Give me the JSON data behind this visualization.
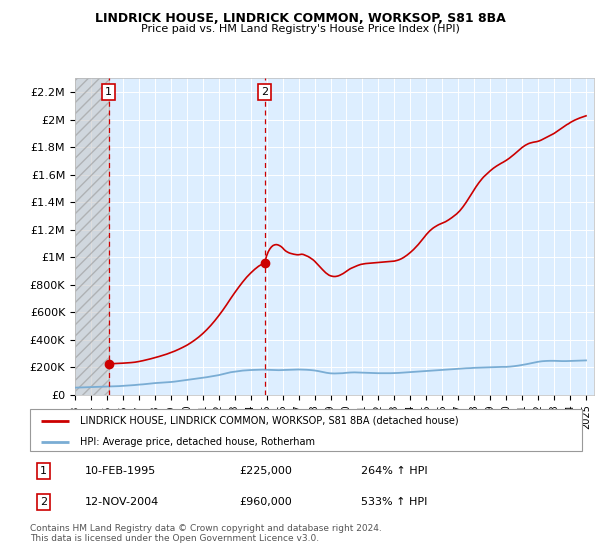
{
  "title": "LINDRICK HOUSE, LINDRICK COMMON, WORKSOP, S81 8BA",
  "subtitle": "Price paid vs. HM Land Registry's House Price Index (HPI)",
  "ylabel_ticks": [
    0,
    200000,
    400000,
    600000,
    800000,
    1000000,
    1200000,
    1400000,
    1600000,
    1800000,
    2000000,
    2200000
  ],
  "ylabel_labels": [
    "£0",
    "£200K",
    "£400K",
    "£600K",
    "£800K",
    "£1M",
    "£1.2M",
    "£1.4M",
    "£1.6M",
    "£1.8M",
    "£2M",
    "£2.2M"
  ],
  "ylim": [
    0,
    2300000
  ],
  "xlim_start": 1993.0,
  "xlim_end": 2025.5,
  "sale1_x": 1995.11,
  "sale1_y": 225000,
  "sale1_label": "1",
  "sale1_date": "10-FEB-1995",
  "sale1_price": "£225,000",
  "sale1_hpi": "264% ↑ HPI",
  "sale2_x": 2004.87,
  "sale2_y": 960000,
  "sale2_label": "2",
  "sale2_date": "12-NOV-2004",
  "sale2_price": "£960,000",
  "sale2_hpi": "533% ↑ HPI",
  "red_line_color": "#cc0000",
  "blue_line_color": "#7aadd4",
  "bg_color": "#ddeeff",
  "legend_line1": "LINDRICK HOUSE, LINDRICK COMMON, WORKSOP, S81 8BA (detached house)",
  "legend_line2": "HPI: Average price, detached house, Rotherham",
  "footer": "Contains HM Land Registry data © Crown copyright and database right 2024.\nThis data is licensed under the Open Government Licence v3.0.",
  "hpi_years": [
    1993.0,
    1993.25,
    1993.5,
    1993.75,
    1994.0,
    1994.25,
    1994.5,
    1994.75,
    1995.0,
    1995.25,
    1995.5,
    1995.75,
    1996.0,
    1996.25,
    1996.5,
    1996.75,
    1997.0,
    1997.25,
    1997.5,
    1997.75,
    1998.0,
    1998.25,
    1998.5,
    1998.75,
    1999.0,
    1999.25,
    1999.5,
    1999.75,
    2000.0,
    2000.25,
    2000.5,
    2000.75,
    2001.0,
    2001.25,
    2001.5,
    2001.75,
    2002.0,
    2002.25,
    2002.5,
    2002.75,
    2003.0,
    2003.25,
    2003.5,
    2003.75,
    2004.0,
    2004.25,
    2004.5,
    2004.75,
    2005.0,
    2005.25,
    2005.5,
    2005.75,
    2006.0,
    2006.25,
    2006.5,
    2006.75,
    2007.0,
    2007.25,
    2007.5,
    2007.75,
    2008.0,
    2008.25,
    2008.5,
    2008.75,
    2009.0,
    2009.25,
    2009.5,
    2009.75,
    2010.0,
    2010.25,
    2010.5,
    2010.75,
    2011.0,
    2011.25,
    2011.5,
    2011.75,
    2012.0,
    2012.25,
    2012.5,
    2012.75,
    2013.0,
    2013.25,
    2013.5,
    2013.75,
    2014.0,
    2014.25,
    2014.5,
    2014.75,
    2015.0,
    2015.25,
    2015.5,
    2015.75,
    2016.0,
    2016.25,
    2016.5,
    2016.75,
    2017.0,
    2017.25,
    2017.5,
    2017.75,
    2018.0,
    2018.25,
    2018.5,
    2018.75,
    2019.0,
    2019.25,
    2019.5,
    2019.75,
    2020.0,
    2020.25,
    2020.5,
    2020.75,
    2021.0,
    2021.25,
    2021.5,
    2021.75,
    2022.0,
    2022.25,
    2022.5,
    2022.75,
    2023.0,
    2023.25,
    2023.5,
    2023.75,
    2024.0,
    2024.25,
    2024.5,
    2024.75,
    2025.0
  ],
  "hpi_values": [
    52000,
    53000,
    54000,
    55000,
    56000,
    57000,
    58000,
    59000,
    60000,
    61000,
    62000,
    63000,
    65000,
    67000,
    69000,
    71000,
    74000,
    76000,
    79000,
    82000,
    85000,
    87000,
    89000,
    91000,
    93000,
    96000,
    100000,
    104000,
    108000,
    112000,
    116000,
    120000,
    124000,
    128000,
    133000,
    138000,
    143000,
    150000,
    157000,
    164000,
    168000,
    172000,
    176000,
    178000,
    180000,
    181000,
    182000,
    183000,
    182000,
    181000,
    180000,
    179000,
    180000,
    181000,
    182000,
    183000,
    184000,
    183000,
    182000,
    180000,
    177000,
    172000,
    166000,
    160000,
    156000,
    155000,
    156000,
    157000,
    160000,
    162000,
    163000,
    162000,
    161000,
    160000,
    159000,
    158000,
    157000,
    157000,
    157000,
    157000,
    158000,
    159000,
    161000,
    163000,
    165000,
    167000,
    169000,
    171000,
    173000,
    175000,
    177000,
    179000,
    181000,
    183000,
    185000,
    187000,
    189000,
    191000,
    193000,
    194000,
    196000,
    197000,
    198000,
    199000,
    200000,
    201000,
    202000,
    203000,
    203000,
    205000,
    208000,
    212000,
    217000,
    222000,
    228000,
    234000,
    240000,
    244000,
    246000,
    247000,
    247000,
    246000,
    245000,
    245000,
    246000,
    247000,
    248000,
    249000,
    250000
  ],
  "house_years": [
    1995.11,
    1995.3,
    1995.5,
    1995.75,
    1996.0,
    1996.25,
    1996.5,
    1996.75,
    1997.0,
    1997.25,
    1997.5,
    1997.75,
    1998.0,
    1998.25,
    1998.5,
    1998.75,
    1999.0,
    1999.25,
    1999.5,
    1999.75,
    2000.0,
    2000.25,
    2000.5,
    2000.75,
    2001.0,
    2001.25,
    2001.5,
    2001.75,
    2002.0,
    2002.25,
    2002.5,
    2002.75,
    2003.0,
    2003.25,
    2003.5,
    2003.75,
    2004.0,
    2004.25,
    2004.5,
    2004.75,
    2004.87,
    2005.0,
    2005.1,
    2005.2,
    2005.3,
    2005.4,
    2005.5,
    2005.6,
    2005.7,
    2005.8,
    2005.9,
    2006.0,
    2006.1,
    2006.2,
    2006.3,
    2006.4,
    2006.5,
    2006.6,
    2006.7,
    2006.8,
    2006.9,
    2007.0,
    2007.1,
    2007.2,
    2007.3,
    2007.4,
    2007.5,
    2007.6,
    2007.7,
    2007.8,
    2007.9,
    2008.0,
    2008.1,
    2008.2,
    2008.3,
    2008.4,
    2008.5,
    2008.6,
    2008.7,
    2008.8,
    2008.9,
    2009.0,
    2009.1,
    2009.2,
    2009.3,
    2009.4,
    2009.5,
    2009.6,
    2009.7,
    2009.8,
    2009.9,
    2010.0,
    2010.1,
    2010.2,
    2010.3,
    2010.4,
    2010.5,
    2010.6,
    2010.7,
    2010.8,
    2010.9,
    2011.0,
    2011.1,
    2011.2,
    2011.3,
    2011.4,
    2011.5,
    2011.6,
    2011.7,
    2011.8,
    2011.9,
    2012.0,
    2012.1,
    2012.2,
    2012.3,
    2012.4,
    2012.5,
    2012.6,
    2012.7,
    2012.8,
    2012.9,
    2013.0,
    2013.1,
    2013.2,
    2013.3,
    2013.4,
    2013.5,
    2013.6,
    2013.7,
    2013.8,
    2013.9,
    2014.0,
    2014.1,
    2014.2,
    2014.3,
    2014.4,
    2014.5,
    2014.6,
    2014.7,
    2014.8,
    2014.9,
    2015.0,
    2015.1,
    2015.2,
    2015.3,
    2015.4,
    2015.5,
    2015.6,
    2015.7,
    2015.8,
    2015.9,
    2016.0,
    2016.1,
    2016.2,
    2016.3,
    2016.4,
    2016.5,
    2016.6,
    2016.7,
    2016.8,
    2016.9,
    2017.0,
    2017.1,
    2017.2,
    2017.3,
    2017.4,
    2017.5,
    2017.6,
    2017.7,
    2017.8,
    2017.9,
    2018.0,
    2018.1,
    2018.2,
    2018.3,
    2018.4,
    2018.5,
    2018.6,
    2018.7,
    2018.8,
    2018.9,
    2019.0,
    2019.1,
    2019.2,
    2019.3,
    2019.4,
    2019.5,
    2019.6,
    2019.7,
    2019.8,
    2019.9,
    2020.0,
    2020.1,
    2020.2,
    2020.3,
    2020.4,
    2020.5,
    2020.6,
    2020.7,
    2020.8,
    2020.9,
    2021.0,
    2021.1,
    2021.2,
    2021.3,
    2021.4,
    2021.5,
    2021.6,
    2021.7,
    2021.8,
    2021.9,
    2022.0,
    2022.1,
    2022.2,
    2022.3,
    2022.4,
    2022.5,
    2022.6,
    2022.7,
    2022.8,
    2022.9,
    2023.0,
    2023.1,
    2023.2,
    2023.3,
    2023.4,
    2023.5,
    2023.6,
    2023.7,
    2023.8,
    2023.9,
    2024.0,
    2024.1,
    2024.2,
    2024.3,
    2024.4,
    2024.5,
    2024.6,
    2024.7,
    2024.8,
    2024.9,
    2025.0
  ],
  "house_values": [
    225000,
    226000,
    227000,
    228000,
    230000,
    232000,
    234000,
    237000,
    242000,
    248000,
    255000,
    262000,
    270000,
    278000,
    287000,
    296000,
    307000,
    318000,
    331000,
    345000,
    360000,
    378000,
    398000,
    420000,
    445000,
    473000,
    504000,
    538000,
    575000,
    614000,
    656000,
    700000,
    742000,
    782000,
    820000,
    855000,
    885000,
    912000,
    935000,
    952000,
    960000,
    1010000,
    1040000,
    1060000,
    1075000,
    1085000,
    1090000,
    1092000,
    1090000,
    1085000,
    1078000,
    1068000,
    1055000,
    1045000,
    1038000,
    1032000,
    1028000,
    1025000,
    1022000,
    1020000,
    1018000,
    1018000,
    1020000,
    1022000,
    1020000,
    1015000,
    1010000,
    1005000,
    998000,
    990000,
    982000,
    972000,
    960000,
    948000,
    935000,
    922000,
    910000,
    898000,
    887000,
    878000,
    870000,
    865000,
    862000,
    860000,
    860000,
    862000,
    865000,
    870000,
    876000,
    882000,
    890000,
    898000,
    906000,
    914000,
    920000,
    925000,
    930000,
    935000,
    940000,
    944000,
    948000,
    950000,
    952000,
    954000,
    955000,
    956000,
    957000,
    958000,
    959000,
    960000,
    961000,
    962000,
    963000,
    964000,
    965000,
    966000,
    967000,
    968000,
    969000,
    970000,
    971000,
    972000,
    975000,
    978000,
    982000,
    987000,
    993000,
    1000000,
    1008000,
    1016000,
    1025000,
    1035000,
    1045000,
    1056000,
    1068000,
    1080000,
    1093000,
    1107000,
    1121000,
    1136000,
    1150000,
    1165000,
    1178000,
    1190000,
    1200000,
    1210000,
    1218000,
    1225000,
    1232000,
    1238000,
    1243000,
    1248000,
    1253000,
    1258000,
    1265000,
    1272000,
    1280000,
    1288000,
    1297000,
    1306000,
    1315000,
    1326000,
    1338000,
    1352000,
    1367000,
    1383000,
    1400000,
    1418000,
    1436000,
    1455000,
    1473000,
    1492000,
    1510000,
    1527000,
    1543000,
    1558000,
    1572000,
    1585000,
    1596000,
    1608000,
    1618000,
    1628000,
    1638000,
    1647000,
    1655000,
    1663000,
    1670000,
    1677000,
    1684000,
    1690000,
    1697000,
    1704000,
    1712000,
    1720000,
    1729000,
    1738000,
    1748000,
    1758000,
    1768000,
    1778000,
    1788000,
    1798000,
    1806000,
    1814000,
    1820000,
    1826000,
    1830000,
    1833000,
    1836000,
    1838000,
    1840000,
    1843000,
    1847000,
    1852000,
    1858000,
    1864000,
    1870000,
    1876000,
    1882000,
    1888000,
    1894000,
    1900000,
    1908000,
    1916000,
    1924000,
    1932000,
    1940000,
    1948000,
    1956000,
    1964000,
    1970000,
    1978000,
    1985000,
    1991000,
    1997000,
    2002000,
    2007000,
    2012000,
    2016000,
    2020000,
    2024000,
    2028000
  ]
}
